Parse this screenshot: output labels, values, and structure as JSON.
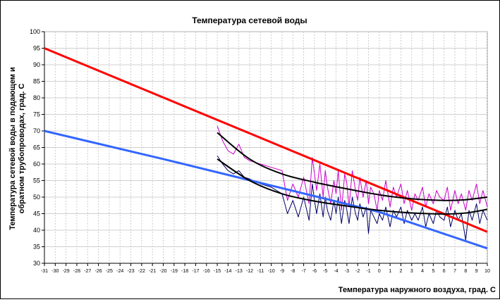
{
  "chart_data": {
    "type": "line",
    "title": "Температура сетевой воды",
    "xlabel": "Температура наружного воздуха, град. С",
    "ylabel": "Температура сетевой воды в подающем и обратном трубопроводах, град. С",
    "xlim": [
      -31,
      10
    ],
    "ylim": [
      30,
      100
    ],
    "y_ticks": [
      30,
      35,
      40,
      45,
      50,
      55,
      60,
      65,
      70,
      75,
      80,
      85,
      90,
      95,
      100
    ],
    "x_ticks": [
      -31,
      -30,
      -29,
      -28,
      -27,
      -26,
      -25,
      -24,
      -23,
      -22,
      -21,
      -20,
      -19,
      -18,
      -17,
      -16,
      -15,
      -14,
      -13,
      -12,
      -11,
      -10,
      -9,
      -8,
      -7,
      -6,
      -5,
      -4,
      -3,
      -2,
      -1,
      0,
      1,
      2,
      3,
      4,
      5,
      6,
      7,
      8,
      9,
      10
    ],
    "grid": true,
    "colors": {
      "supply_schedule": "#ff0000",
      "return_schedule": "#3366ff",
      "supply_actual": "#cc00cc",
      "return_actual": "#000066",
      "trend": "#000000",
      "grid": "#c0c0c0"
    },
    "series": [
      {
        "key": "supply_schedule",
        "x": [
          -31,
          10
        ],
        "y": [
          95,
          39.5
        ]
      },
      {
        "key": "return_schedule",
        "x": [
          -31,
          -20,
          -10,
          0,
          10
        ],
        "y": [
          70,
          61.5,
          53.5,
          45.5,
          34.5
        ]
      },
      {
        "key": "supply_actual",
        "x": [
          -15,
          -14.5,
          -14,
          -13.5,
          -13,
          -12.5,
          -12,
          -11,
          -10,
          -9,
          -8.5,
          -8,
          -7.5,
          -7,
          -6.5,
          -6.2,
          -6,
          -5.8,
          -5.5,
          -5.2,
          -5,
          -4.8,
          -4.5,
          -4.2,
          -4,
          -3.8,
          -3.5,
          -3.2,
          -3,
          -2.8,
          -2.5,
          -2.2,
          -2,
          -1.8,
          -1.5,
          -1.2,
          -1,
          -0.8,
          -0.5,
          -0.2,
          0,
          0.3,
          0.6,
          1,
          1.3,
          1.6,
          2,
          2.3,
          2.6,
          3,
          3.3,
          3.6,
          4,
          4.3,
          4.6,
          5,
          5.3,
          5.6,
          6,
          6.3,
          6.6,
          7,
          7.3,
          7.6,
          8,
          8.3,
          8.6,
          9,
          9.3,
          9.6,
          10
        ],
        "y": [
          71.5,
          67,
          64,
          63,
          66,
          62,
          61,
          60,
          59,
          58,
          49,
          54,
          50,
          56,
          48,
          62,
          57,
          52,
          60,
          50,
          58,
          53,
          48,
          55,
          51,
          58,
          46,
          57,
          54,
          47,
          58,
          52,
          49,
          56,
          50,
          55,
          48,
          53,
          51,
          46,
          52,
          49,
          55,
          47,
          53,
          50,
          54,
          48,
          52,
          46,
          51,
          49,
          53,
          47,
          51,
          48,
          52,
          50,
          49,
          53,
          46,
          52,
          48,
          51,
          46,
          52,
          49,
          54,
          48,
          52,
          47
        ]
      },
      {
        "key": "return_actual",
        "x": [
          -15,
          -14.5,
          -14,
          -13.5,
          -13,
          -12.5,
          -12,
          -11,
          -10,
          -9,
          -8.5,
          -8,
          -7.5,
          -7,
          -6.5,
          -6.2,
          -6,
          -5.8,
          -5.5,
          -5.2,
          -5,
          -4.8,
          -4.5,
          -4.2,
          -4,
          -3.8,
          -3.5,
          -3.2,
          -3,
          -2.8,
          -2.5,
          -2.2,
          -2,
          -1.8,
          -1.5,
          -1.2,
          -1,
          -0.8,
          -0.5,
          -0.2,
          0,
          0.3,
          0.6,
          1,
          1.3,
          1.6,
          2,
          2.3,
          2.6,
          3,
          3.3,
          3.6,
          4,
          4.3,
          4.6,
          5,
          5.3,
          5.6,
          6,
          6.3,
          6.6,
          7,
          7.3,
          7.6,
          8,
          8.3,
          8.6,
          9,
          9.3,
          9.6,
          10
        ],
        "y": [
          62.5,
          60,
          58,
          57,
          58,
          56,
          55.5,
          54,
          53,
          51,
          45,
          49,
          44,
          50,
          43,
          54,
          49,
          45,
          51,
          44,
          50,
          46,
          43,
          49,
          45,
          50,
          42,
          49,
          46,
          42,
          50,
          45,
          43,
          48,
          44,
          47,
          39,
          46,
          44,
          42,
          45,
          43,
          47,
          41,
          46,
          44,
          47,
          42,
          46,
          43,
          45,
          43,
          47,
          41,
          45,
          42,
          46,
          44,
          43,
          47,
          41,
          46,
          43,
          45,
          37,
          46,
          43,
          48,
          42,
          46,
          43
        ]
      },
      {
        "key": "trend_supply",
        "x": [
          -15,
          -12,
          -9,
          -6,
          -3,
          0,
          3,
          6,
          8,
          10
        ],
        "y": [
          69.5,
          61.5,
          57,
          54.5,
          52.5,
          50.7,
          49.5,
          49,
          49.2,
          50
        ]
      },
      {
        "key": "trend_return",
        "x": [
          -15,
          -12,
          -9,
          -6,
          -3,
          0,
          3,
          6,
          8,
          10
        ],
        "y": [
          61.5,
          55,
          51,
          48.8,
          47.3,
          46,
          45.2,
          44.9,
          45.2,
          46.3
        ]
      }
    ]
  }
}
